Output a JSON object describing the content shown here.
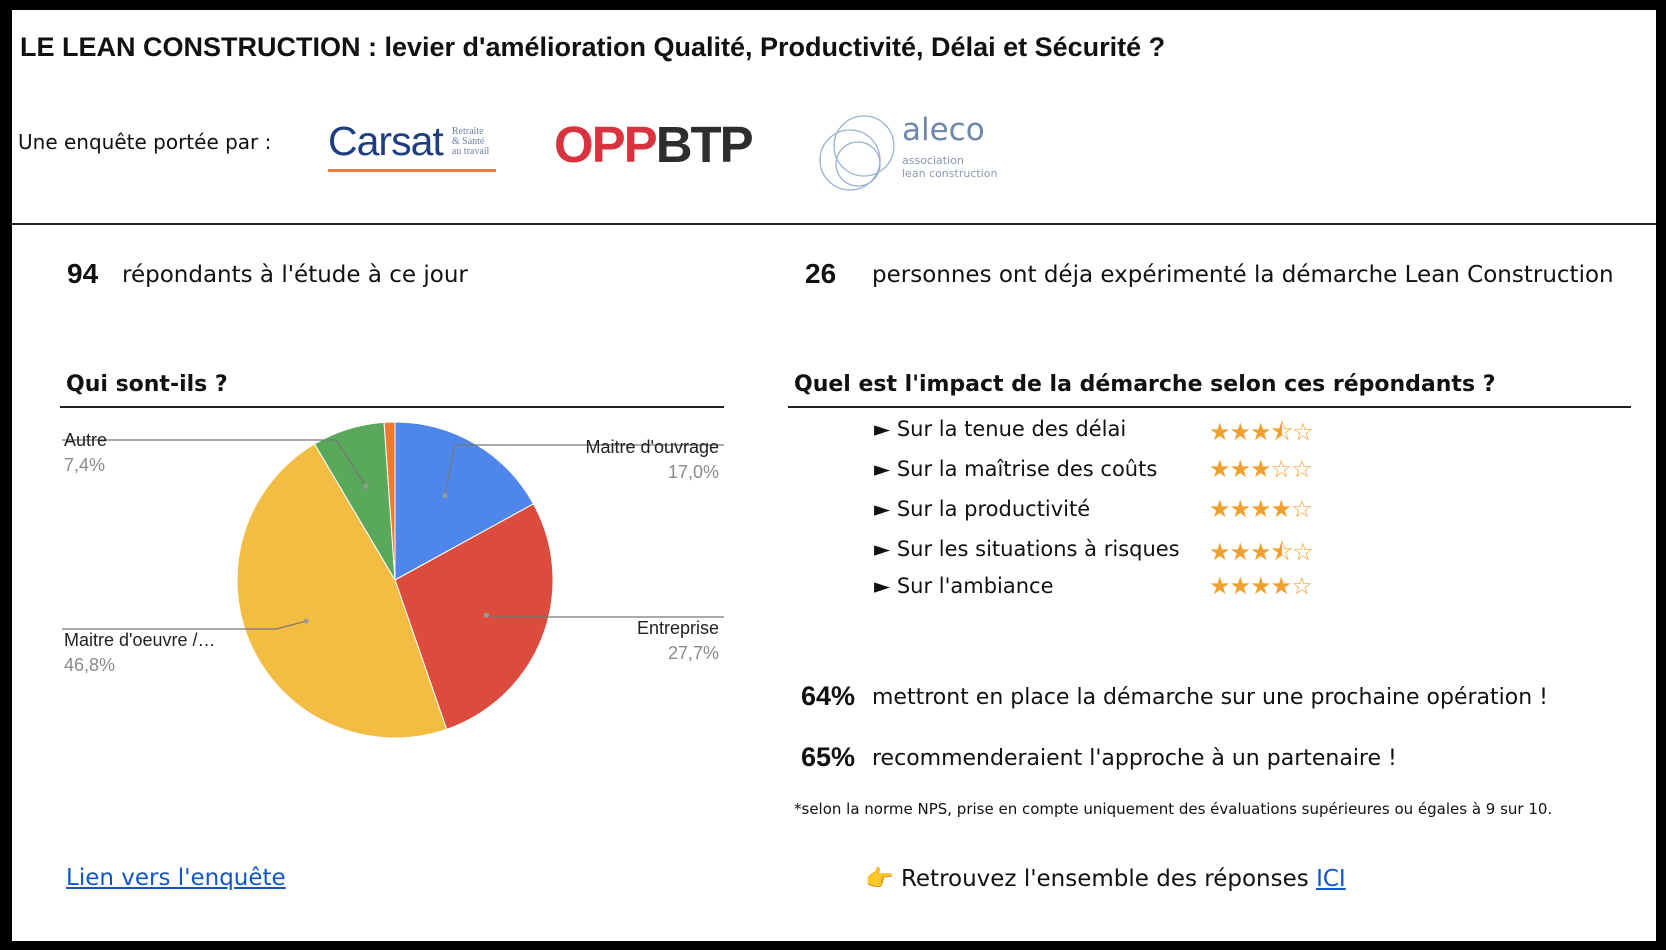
{
  "header": {
    "title": "LE LEAN CONSTRUCTION : levier d'amélioration Qualité, Productivité, Délai et Sécurité ?",
    "byline": "Une enquête portée par :",
    "logos": {
      "carsat": {
        "word": "Carsat",
        "sub": [
          "Retraite",
          "& Santé",
          "au travail"
        ]
      },
      "oppbtp": {
        "red": "OPP",
        "dark": "BTP"
      },
      "aleco": {
        "word": "aleco",
        "sub": [
          "association",
          "lean construction"
        ]
      }
    }
  },
  "stats": {
    "respondents": {
      "value": "94",
      "text": "répondants à l'étude à ce jour"
    },
    "experienced": {
      "value": "26",
      "text": "personnes ont déja expérimenté la démarche Lean Construction"
    }
  },
  "who": {
    "title": "Qui sont-ils ?",
    "chart_data": {
      "type": "pie",
      "slices": [
        {
          "label": "Maitre d'ouvrage",
          "pct": "17,0%",
          "value": 17.0,
          "color": "#4e86ec"
        },
        {
          "label": "Entreprise",
          "pct": "27,7%",
          "value": 27.7,
          "color": "#db4c3f"
        },
        {
          "label": "Maitre d'oeuvre /…",
          "pct": "46,8%",
          "value": 46.8,
          "color": "#f3bd43"
        },
        {
          "label": "Autre",
          "pct": "7,4%",
          "value": 7.4,
          "color": "#59a85c"
        },
        {
          "label": "",
          "pct": "",
          "value": 1.1,
          "color": "#ef7a2e"
        }
      ]
    }
  },
  "impact": {
    "title": "Quel est l'impact de la démarche selon ces répondants ?",
    "items": [
      {
        "label": "► Sur la tenue des délai",
        "stars": "★★★⯪☆",
        "rating": 3.5
      },
      {
        "label": "► Sur la maîtrise des coûts",
        "stars": "★★★☆☆",
        "rating": 3
      },
      {
        "label": "► Sur la productivité",
        "stars": "★★★★☆",
        "rating": 4
      },
      {
        "label": "► Sur les situations à risques",
        "stars": "★★★⯪☆",
        "rating": 3.5
      },
      {
        "label": "► Sur l'ambiance",
        "stars": "★★★★☆",
        "rating": 4
      }
    ]
  },
  "outcomes": [
    {
      "pct": "64%",
      "text": "mettront en place la démarche sur une prochaine opération !"
    },
    {
      "pct": "65%",
      "text": "recommenderaient l'approche à un partenaire !"
    }
  ],
  "note": "*selon la norme NPS, prise en compte uniquement des évaluations supérieures ou égales à 9 sur 10.",
  "footer": {
    "survey_link": "Lien vers l'enquête",
    "pointer_icon": "👉",
    "answers_text": "Retrouvez l'ensemble des réponses ",
    "answers_link": "ICI"
  }
}
